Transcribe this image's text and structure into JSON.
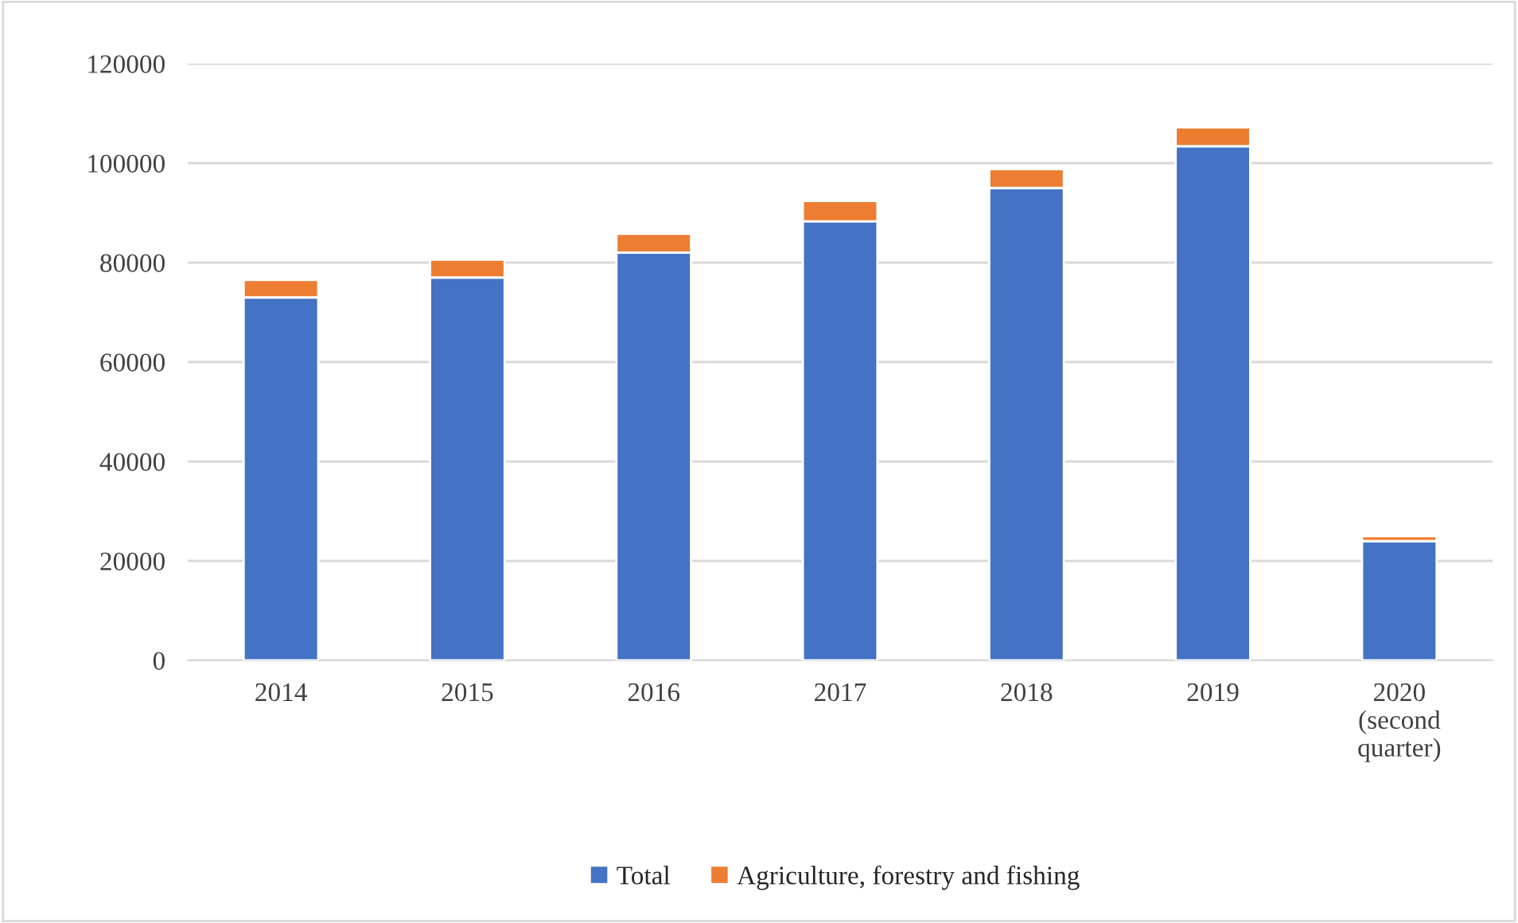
{
  "chart_data": {
    "type": "bar",
    "stacked": true,
    "categories": [
      "2014",
      "2015",
      "2016",
      "2017",
      "2018",
      "2019",
      "2020\n(second\nquarter)"
    ],
    "series": [
      {
        "name": "Total",
        "color": "#4472c4",
        "values": [
          73000,
          77000,
          82000,
          88300,
          95000,
          103400,
          24000
        ]
      },
      {
        "name": "Agriculture, forestry and fishing",
        "color": "#ed7d31",
        "values": [
          3500,
          3600,
          3800,
          4100,
          3800,
          3800,
          1000
        ]
      }
    ],
    "ylim": [
      0,
      120000
    ],
    "yticks": [
      0,
      20000,
      40000,
      60000,
      80000,
      100000,
      120000
    ],
    "grid": "y",
    "legend": "bottom"
  }
}
